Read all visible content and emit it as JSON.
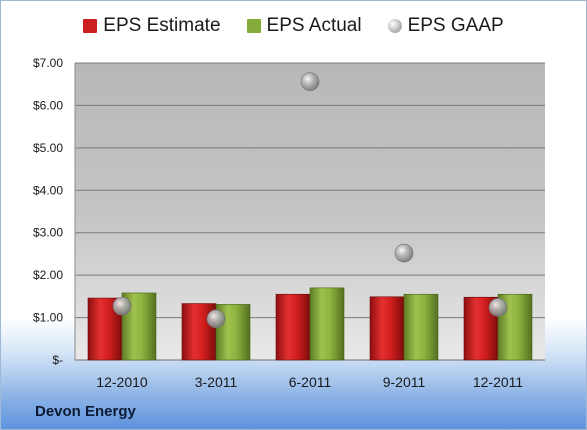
{
  "chart_data": {
    "type": "bar",
    "categories": [
      "12-2010",
      "3-2011",
      "6-2011",
      "9-2011",
      "12-2011"
    ],
    "series": [
      {
        "name": "EPS Estimate",
        "type": "bar",
        "color": "#cc1f1f",
        "values": [
          1.46,
          1.33,
          1.55,
          1.49,
          1.48
        ]
      },
      {
        "name": "EPS Actual",
        "type": "bar",
        "color": "#86ad3b",
        "values": [
          1.58,
          1.31,
          1.7,
          1.55,
          1.55
        ]
      },
      {
        "name": "EPS GAAP",
        "type": "marker",
        "color": "#a9a9a9",
        "values": [
          1.27,
          0.97,
          6.56,
          2.52,
          1.24
        ]
      }
    ],
    "yticks": [
      "$-",
      "$1.00",
      "$2.00",
      "$3.00",
      "$4.00",
      "$5.00",
      "$6.00",
      "$7.00"
    ],
    "ylim": [
      0,
      7
    ],
    "grid": true,
    "legend_position": "top"
  },
  "company": "Devon Energy"
}
